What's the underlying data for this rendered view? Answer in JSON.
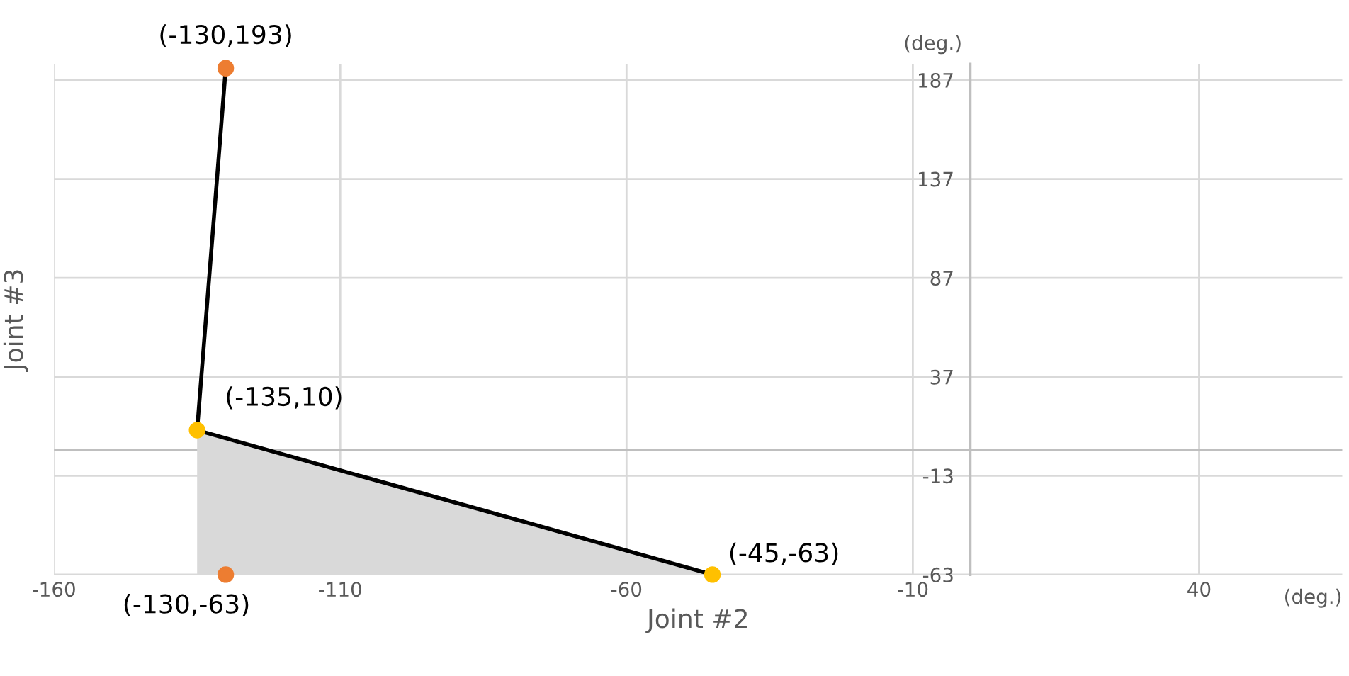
{
  "chart_data": {
    "type": "scatter",
    "xlabel": "Joint #2",
    "ylabel": "Joint #3",
    "xlim": [
      -160,
      65
    ],
    "xticks": [
      -160,
      -110,
      -60,
      -10,
      40
    ],
    "ylim": [
      -63,
      195
    ],
    "yticks": [
      -63,
      -13,
      37,
      87,
      137,
      187
    ],
    "grid": true,
    "ref_lines": [
      {
        "axis": "y",
        "value": 0,
        "color": "#bfbfbf"
      }
    ],
    "series": [
      {
        "type": "area",
        "color": "#d9d9d9",
        "x": [
          -135,
          -45
        ],
        "values": [
          10,
          -63
        ]
      },
      {
        "type": "line",
        "color": "#000000",
        "x": [
          -130,
          -135,
          -45
        ],
        "values": [
          193,
          10,
          -63
        ]
      },
      {
        "color": "#ed7d31",
        "x": [
          -130,
          -130
        ],
        "values": [
          193,
          -63
        ]
      },
      {
        "color": "#ffc000",
        "x": [
          -135,
          -45
        ],
        "values": [
          10,
          -63
        ]
      }
    ],
    "annotations": [
      {
        "text": "(-130,193)",
        "x": -130,
        "y": 193
      },
      {
        "text": "(-135,10)",
        "x": -135,
        "y": 10
      },
      {
        "text": "(-130,-63)",
        "x": -130,
        "y": -63
      },
      {
        "text": "(-45,-63)",
        "x": -45,
        "y": -63
      },
      "(deg.)",
      "(deg.)"
    ]
  }
}
